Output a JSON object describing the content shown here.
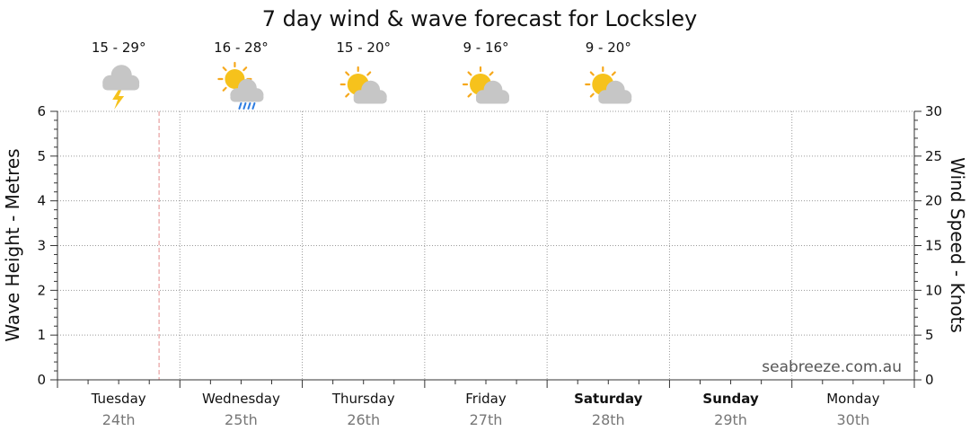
{
  "chart_data": {
    "type": "line",
    "title": "7 day wind & wave forecast for Locksley",
    "y_left": {
      "label": "Wave Height - Metres",
      "range": [
        0,
        6
      ],
      "ticks": [
        0,
        1,
        2,
        3,
        4,
        5,
        6
      ]
    },
    "y_right": {
      "label": "Wind Speed - Knots",
      "range": [
        0,
        30
      ],
      "ticks": [
        0,
        5,
        10,
        15,
        20,
        25,
        30
      ]
    },
    "grid": true,
    "days": [
      {
        "name": "Tuesday",
        "date": "24th",
        "weekend": false,
        "temp": "15 - 29°",
        "icon": "storm-cloud-icon"
      },
      {
        "name": "Wednesday",
        "date": "25th",
        "weekend": false,
        "temp": "16 - 28°",
        "icon": "sun-rain-cloud-icon"
      },
      {
        "name": "Thursday",
        "date": "26th",
        "weekend": false,
        "temp": "15 - 20°",
        "icon": "partly-cloudy-icon"
      },
      {
        "name": "Friday",
        "date": "27th",
        "weekend": false,
        "temp": "9 - 16°",
        "icon": "partly-cloudy-icon"
      },
      {
        "name": "Saturday",
        "date": "28th",
        "weekend": true,
        "temp": "9 - 20°",
        "icon": "partly-cloudy-icon"
      },
      {
        "name": "Sunday",
        "date": "29th",
        "weekend": true,
        "temp": "",
        "icon": ""
      },
      {
        "name": "Monday",
        "date": "30th",
        "weekend": false,
        "temp": "",
        "icon": ""
      }
    ],
    "now_marker_day_fraction": 0.83,
    "series": []
  },
  "watermark": "seabreeze.com.au",
  "colors": {
    "grid": "#9a9a9a",
    "now_marker": "#e8a0a0",
    "sun": "#f6c21c",
    "sun_rays": "#f6a81c",
    "cloud": "#c6c6c6",
    "rain": "#2f7de1",
    "lightning": "#f6c21c"
  }
}
